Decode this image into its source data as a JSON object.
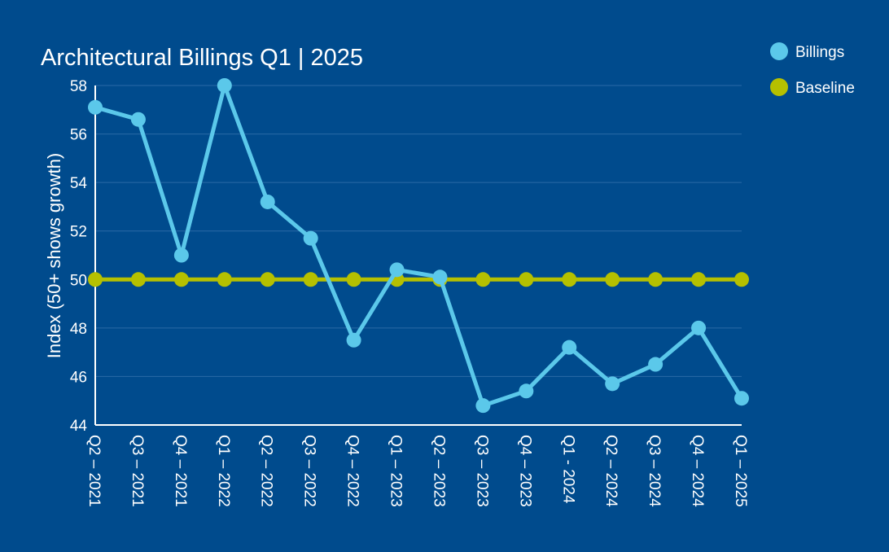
{
  "colors": {
    "background": "#004b8d",
    "grid": "#2a6aa6",
    "axis": "#ffffff",
    "billings": "#5bc8ea",
    "baseline": "#b5c000"
  },
  "chart_data": {
    "type": "line",
    "title": "Architectural Billings Q1 | 2025",
    "xlabel": "",
    "ylabel": "Index (50+ shows growth)",
    "ylim": [
      44,
      58
    ],
    "yticks": [
      44,
      46,
      48,
      50,
      52,
      54,
      56,
      58
    ],
    "grid": true,
    "legend_position": "top-right",
    "categories": [
      "Q2 – 2021",
      "Q3 – 2021",
      "Q4 – 2021",
      "Q1 – 2022",
      "Q2 – 2022",
      "Q3 – 2022",
      "Q4 – 2022",
      "Q1 – 2023",
      "Q2 – 2023",
      "Q3 – 2023",
      "Q4 – 2023",
      "Q1 - 2024",
      "Q2 – 2024",
      "Q3 – 2024",
      "Q4 – 2024",
      "Q1 – 2025"
    ],
    "series": [
      {
        "name": "Billings",
        "color_key": "billings",
        "values": [
          57.1,
          56.6,
          51.0,
          58.0,
          53.2,
          51.7,
          47.5,
          50.4,
          50.1,
          44.8,
          45.4,
          47.2,
          45.7,
          46.5,
          48.0,
          45.1
        ]
      },
      {
        "name": "Baseline",
        "color_key": "baseline",
        "values": [
          50,
          50,
          50,
          50,
          50,
          50,
          50,
          50,
          50,
          50,
          50,
          50,
          50,
          50,
          50,
          50
        ]
      }
    ]
  }
}
